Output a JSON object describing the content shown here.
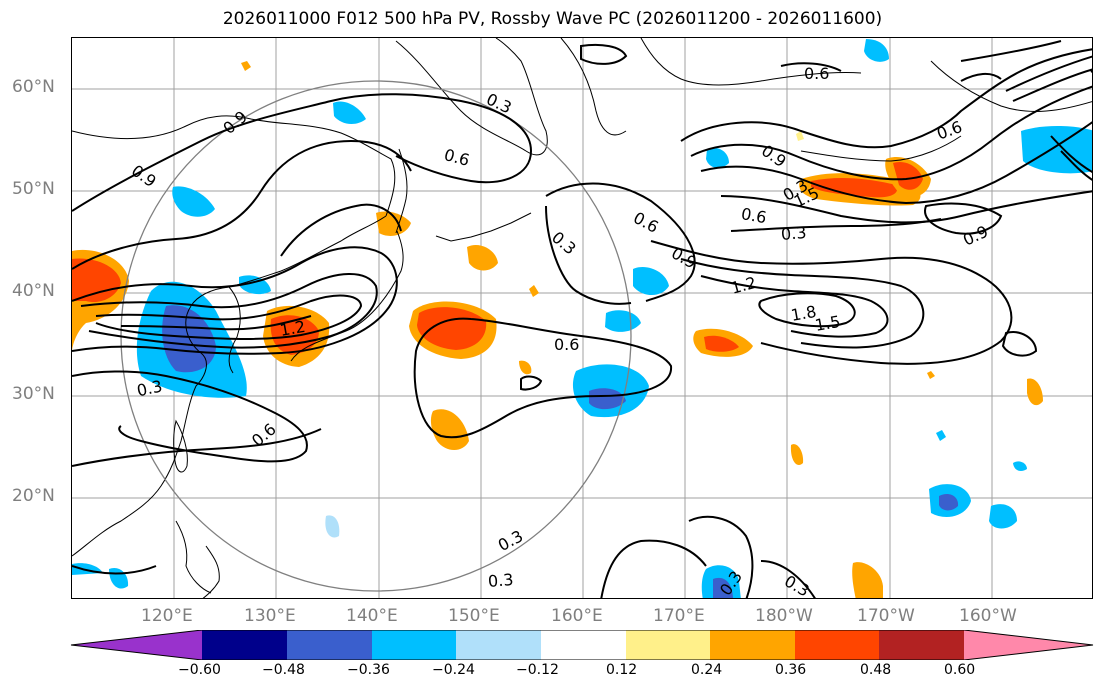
{
  "title": "2026011000 F012 500 hPa PV, Rossby Wave PC (2026011200 - 2026011600)",
  "map": {
    "lat_labels": [
      "60°N",
      "50°N",
      "40°N",
      "30°N",
      "20°N"
    ],
    "lon_labels": [
      "120°E",
      "130°E",
      "140°E",
      "150°E",
      "160°E",
      "170°E",
      "180°W",
      "170°W",
      "160°W"
    ],
    "contour_labels": [
      "0.9",
      "0.3",
      "0.6",
      "0.9",
      "0.6",
      "0.3",
      "1.2",
      "0.3",
      "0.6",
      "0.6",
      "0.3",
      "0.6",
      "0.9",
      "1.2",
      "1.8",
      "1.5",
      "0.6",
      "0.3",
      "0.9",
      "0.6",
      "1.5",
      "0.3",
      "0.3",
      "0.3",
      "0.3",
      "0.9"
    ],
    "colors": {
      "land_outline": "#000000",
      "grid": "#a0a0a0",
      "circle": "#808080",
      "contour": "#000000"
    }
  },
  "colorbar": {
    "tick_labels": [
      "−0.60",
      "−0.48",
      "−0.36",
      "−0.24",
      "−0.12",
      "0.12",
      "0.24",
      "0.36",
      "0.48",
      "0.60"
    ],
    "colors": [
      "#9932cc",
      "#00008b",
      "#3a5fcd",
      "#00bfff",
      "#b0e0fa",
      "#ffffff",
      "#fff08a",
      "#ffa500",
      "#ff4500",
      "#b22222",
      "#ff88aa"
    ]
  }
}
